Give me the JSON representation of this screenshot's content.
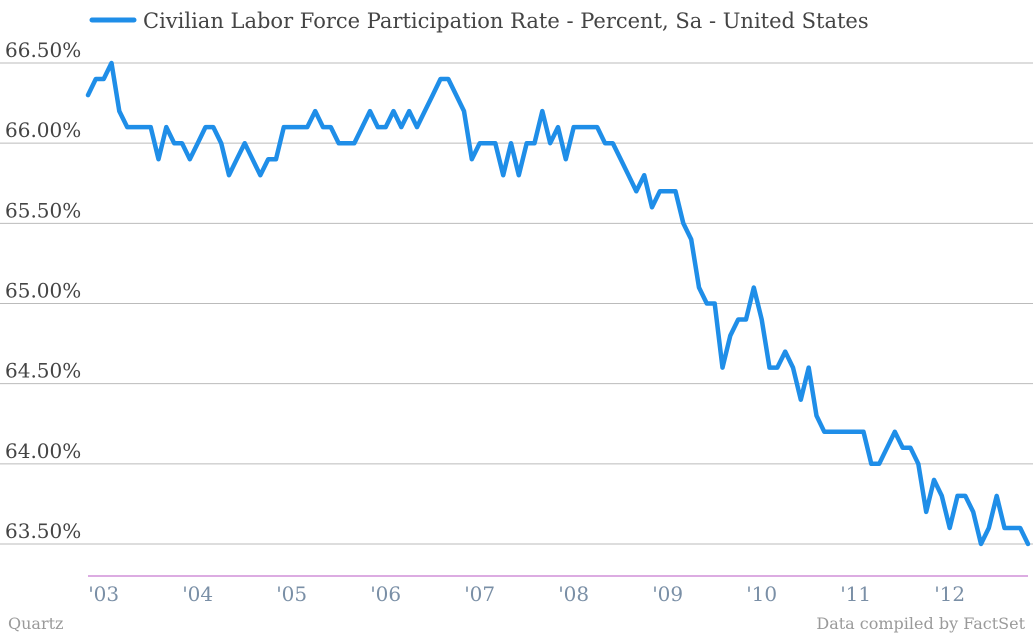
{
  "chart_data": {
    "type": "line",
    "series": [
      {
        "name": "Civilian Labor Force Participation Rate - Percent, Sa - United States",
        "color": "#1f8ee8",
        "points": [
          [
            "2003-01",
            66.3
          ],
          [
            "2003-02",
            66.4
          ],
          [
            "2003-03",
            66.4
          ],
          [
            "2003-04",
            66.5
          ],
          [
            "2003-05",
            66.2
          ],
          [
            "2003-06",
            66.1
          ],
          [
            "2003-07",
            66.1
          ],
          [
            "2003-08",
            66.1
          ],
          [
            "2003-09",
            66.1
          ],
          [
            "2003-10",
            65.9
          ],
          [
            "2003-11",
            66.1
          ],
          [
            "2003-12",
            66.0
          ],
          [
            "2004-01",
            66.0
          ],
          [
            "2004-02",
            65.9
          ],
          [
            "2004-03",
            66.0
          ],
          [
            "2004-04",
            66.1
          ],
          [
            "2004-05",
            66.1
          ],
          [
            "2004-06",
            66.0
          ],
          [
            "2004-07",
            65.8
          ],
          [
            "2004-08",
            65.9
          ],
          [
            "2004-09",
            66.0
          ],
          [
            "2004-10",
            65.9
          ],
          [
            "2004-11",
            65.8
          ],
          [
            "2004-12",
            65.9
          ],
          [
            "2005-01",
            65.9
          ],
          [
            "2005-02",
            66.1
          ],
          [
            "2005-03",
            66.1
          ],
          [
            "2005-04",
            66.1
          ],
          [
            "2005-05",
            66.1
          ],
          [
            "2005-06",
            66.2
          ],
          [
            "2005-07",
            66.1
          ],
          [
            "2005-08",
            66.1
          ],
          [
            "2005-09",
            66.0
          ],
          [
            "2005-10",
            66.0
          ],
          [
            "2005-11",
            66.0
          ],
          [
            "2005-12",
            66.1
          ],
          [
            "2006-01",
            66.2
          ],
          [
            "2006-02",
            66.1
          ],
          [
            "2006-03",
            66.1
          ],
          [
            "2006-04",
            66.2
          ],
          [
            "2006-05",
            66.1
          ],
          [
            "2006-06",
            66.2
          ],
          [
            "2006-07",
            66.1
          ],
          [
            "2006-08",
            66.2
          ],
          [
            "2006-09",
            66.3
          ],
          [
            "2006-10",
            66.4
          ],
          [
            "2006-11",
            66.4
          ],
          [
            "2006-12",
            66.3
          ],
          [
            "2007-01",
            66.2
          ],
          [
            "2007-02",
            65.9
          ],
          [
            "2007-03",
            66.0
          ],
          [
            "2007-04",
            66.0
          ],
          [
            "2007-05",
            66.0
          ],
          [
            "2007-06",
            65.8
          ],
          [
            "2007-07",
            66.0
          ],
          [
            "2007-08",
            65.8
          ],
          [
            "2007-09",
            66.0
          ],
          [
            "2007-10",
            66.0
          ],
          [
            "2007-11",
            66.2
          ],
          [
            "2007-12",
            66.0
          ],
          [
            "2008-01",
            66.1
          ],
          [
            "2008-02",
            65.9
          ],
          [
            "2008-03",
            66.1
          ],
          [
            "2008-04",
            66.1
          ],
          [
            "2008-05",
            66.1
          ],
          [
            "2008-06",
            66.1
          ],
          [
            "2008-07",
            66.0
          ],
          [
            "2008-08",
            66.0
          ],
          [
            "2008-09",
            65.9
          ],
          [
            "2008-10",
            65.8
          ],
          [
            "2008-11",
            65.7
          ],
          [
            "2008-12",
            65.8
          ],
          [
            "2009-01",
            65.6
          ],
          [
            "2009-02",
            65.7
          ],
          [
            "2009-03",
            65.7
          ],
          [
            "2009-04",
            65.7
          ],
          [
            "2009-05",
            65.5
          ],
          [
            "2009-06",
            65.4
          ],
          [
            "2009-07",
            65.1
          ],
          [
            "2009-08",
            65.0
          ],
          [
            "2009-09",
            65.0
          ],
          [
            "2009-10",
            64.6
          ],
          [
            "2009-11",
            64.8
          ],
          [
            "2009-12",
            64.9
          ],
          [
            "2010-01",
            64.9
          ],
          [
            "2010-02",
            65.1
          ],
          [
            "2010-03",
            64.9
          ],
          [
            "2010-04",
            64.6
          ],
          [
            "2010-05",
            64.6
          ],
          [
            "2010-06",
            64.7
          ],
          [
            "2010-07",
            64.6
          ],
          [
            "2010-08",
            64.4
          ],
          [
            "2010-09",
            64.6
          ],
          [
            "2010-10",
            64.3
          ],
          [
            "2010-11",
            64.2
          ],
          [
            "2010-12",
            64.2
          ],
          [
            "2011-01",
            64.2
          ],
          [
            "2011-02",
            64.2
          ],
          [
            "2011-03",
            64.2
          ],
          [
            "2011-04",
            64.2
          ],
          [
            "2011-05",
            64.0
          ],
          [
            "2011-06",
            64.0
          ],
          [
            "2011-07",
            64.1
          ],
          [
            "2011-08",
            64.2
          ],
          [
            "2011-09",
            64.1
          ],
          [
            "2011-10",
            64.1
          ],
          [
            "2011-11",
            64.0
          ],
          [
            "2011-12",
            63.7
          ],
          [
            "2012-01",
            63.9
          ],
          [
            "2012-02",
            63.8
          ],
          [
            "2012-03",
            63.6
          ],
          [
            "2012-04",
            63.8
          ],
          [
            "2012-05",
            63.8
          ],
          [
            "2012-06",
            63.7
          ],
          [
            "2012-07",
            63.5
          ],
          [
            "2012-08",
            63.6
          ],
          [
            "2012-09",
            63.8
          ],
          [
            "2012-10",
            63.6
          ],
          [
            "2012-11",
            63.6
          ],
          [
            "2012-12",
            63.6
          ],
          [
            "2013-01",
            63.5
          ]
        ]
      }
    ],
    "x_ticks": [
      {
        "date": "2003-03",
        "label": "'03"
      },
      {
        "date": "2004-03",
        "label": "'04"
      },
      {
        "date": "2005-03",
        "label": "'05"
      },
      {
        "date": "2006-03",
        "label": "'06"
      },
      {
        "date": "2007-03",
        "label": "'07"
      },
      {
        "date": "2008-03",
        "label": "'08"
      },
      {
        "date": "2009-03",
        "label": "'09"
      },
      {
        "date": "2010-03",
        "label": "'10"
      },
      {
        "date": "2011-03",
        "label": "'11"
      },
      {
        "date": "2012-03",
        "label": "'12"
      }
    ],
    "xlim": [
      "2003-01",
      "2013-01"
    ],
    "y_ticks": [
      {
        "value": 66.5,
        "label": "66.50%"
      },
      {
        "value": 66.0,
        "label": "66.00%"
      },
      {
        "value": 65.5,
        "label": "65.50%"
      },
      {
        "value": 65.0,
        "label": "65.00%"
      },
      {
        "value": 64.5,
        "label": "64.50%"
      },
      {
        "value": 64.0,
        "label": "64.00%"
      },
      {
        "value": 63.5,
        "label": "63.50%"
      }
    ],
    "ylim": [
      63.4,
      66.5
    ],
    "grid": "horizontal",
    "legend_placement": "top-left",
    "axis_color": "#c77ad0",
    "grid_color": "#bbbbbb"
  },
  "footer": {
    "source_left": "Quartz",
    "source_right": "Data compiled by FactSet"
  }
}
